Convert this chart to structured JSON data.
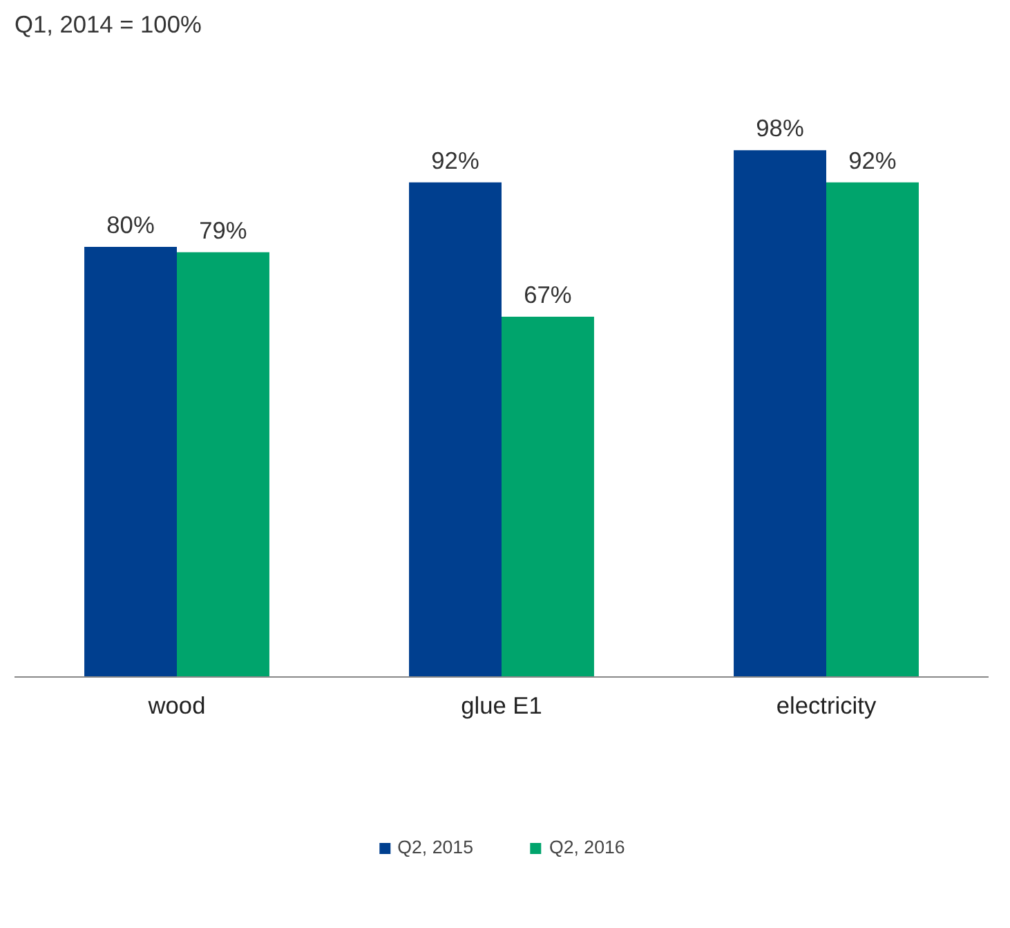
{
  "chart_data": {
    "type": "bar",
    "title": "Q1, 2014 = 100%",
    "categories": [
      "wood",
      "glue E1",
      "electricity"
    ],
    "series": [
      {
        "name": "Q2, 2015",
        "color": "#003f8f",
        "values": [
          80,
          92,
          98
        ],
        "value_labels": [
          "80%",
          "92%",
          "98%"
        ]
      },
      {
        "name": "Q2, 2016",
        "color": "#00a46c",
        "values": [
          79,
          67,
          92
        ],
        "value_labels": [
          "79%",
          "67%",
          "92%"
        ]
      }
    ],
    "grid": false,
    "legend": "bottom"
  }
}
